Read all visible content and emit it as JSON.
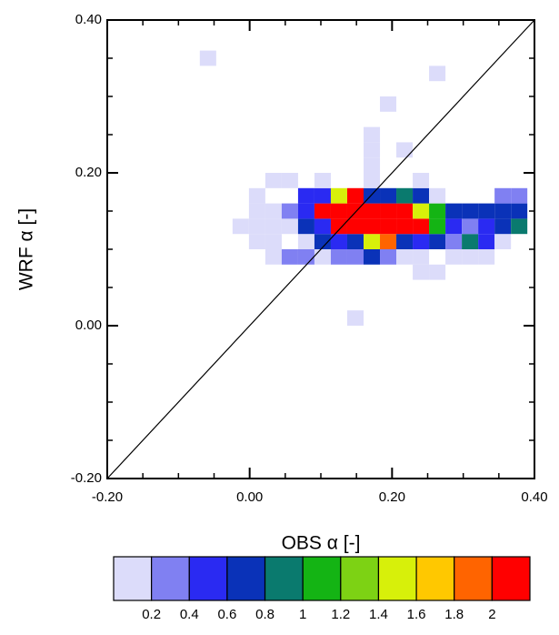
{
  "chart_data": {
    "type": "heatmap",
    "xlabel": "OBS α [-]",
    "ylabel": "WRF α [-]",
    "xlim": [
      -0.2,
      0.4
    ],
    "ylim": [
      -0.2,
      0.4
    ],
    "xticks": [
      {
        "value": -0.2,
        "label": "-0.20"
      },
      {
        "value": 0,
        "label": "0.00"
      },
      {
        "value": 0.2,
        "label": "0.20"
      },
      {
        "value": 0.4,
        "label": "0.40"
      }
    ],
    "yticks": [
      {
        "value": -0.2,
        "label": "-0.20"
      },
      {
        "value": 0,
        "label": "0.00"
      },
      {
        "value": 0.2,
        "label": "0.20"
      },
      {
        "value": 0.4,
        "label": "0.40"
      }
    ],
    "xminorticks": [
      -0.15,
      -0.1,
      -0.05,
      0.05,
      0.1,
      0.15,
      0.25,
      0.3,
      0.35
    ],
    "yminorticks": [
      -0.15,
      -0.1,
      -0.05,
      0.05,
      0.1,
      0.15,
      0.25,
      0.3,
      0.35
    ],
    "reference_line": [
      [
        -0.2,
        -0.2
      ],
      [
        0.4,
        0.4
      ]
    ],
    "x_bins": [
      -0.07,
      -0.047,
      -0.024,
      -0.001,
      0.022,
      0.045,
      0.068,
      0.091,
      0.114,
      0.137,
      0.16,
      0.183,
      0.206,
      0.229,
      0.252,
      0.275,
      0.298,
      0.321,
      0.344,
      0.367,
      0.39
    ],
    "y_bins": [
      0,
      0.02,
      0.04,
      0.06,
      0.08,
      0.1,
      0.12,
      0.14,
      0.16,
      0.18,
      0.2,
      0.22,
      0.24,
      0.26,
      0.28,
      0.3,
      0.32,
      0.34,
      0.36
    ],
    "values": [
      [
        null,
        null,
        null,
        null,
        null,
        null,
        null,
        null,
        null,
        0.1,
        null,
        null,
        null,
        null,
        null,
        null,
        null,
        null,
        null,
        null
      ],
      [
        null,
        null,
        null,
        null,
        null,
        null,
        null,
        null,
        null,
        null,
        null,
        null,
        null,
        null,
        null,
        null,
        null,
        null,
        null,
        null
      ],
      [
        null,
        null,
        null,
        null,
        null,
        null,
        null,
        null,
        null,
        null,
        null,
        null,
        null,
        null,
        null,
        null,
        null,
        null,
        null,
        null
      ],
      [
        null,
        null,
        null,
        null,
        null,
        null,
        null,
        null,
        null,
        null,
        null,
        null,
        null,
        0.1,
        0.1,
        null,
        null,
        null,
        null,
        null
      ],
      [
        null,
        null,
        null,
        null,
        0.1,
        0.3,
        0.3,
        0.1,
        0.3,
        0.3,
        0.7,
        0.3,
        0.1,
        0.1,
        null,
        0.1,
        0.1,
        0.1,
        null,
        null
      ],
      [
        null,
        null,
        null,
        0.1,
        0.1,
        null,
        0.1,
        0.7,
        0.5,
        0.7,
        1.5,
        1.9,
        0.7,
        0.5,
        0.7,
        0.3,
        0.9,
        0.5,
        0.1,
        null
      ],
      [
        null,
        null,
        0.1,
        0.1,
        0.1,
        0.1,
        0.7,
        0.5,
        2.5,
        2.5,
        2.5,
        2.5,
        2.5,
        2.5,
        1.1,
        0.5,
        0.3,
        0.5,
        0.7,
        0.9
      ],
      [
        null,
        null,
        null,
        0.1,
        0.1,
        0.3,
        0.5,
        2.5,
        2.5,
        2.5,
        2.5,
        2.5,
        2.5,
        1.5,
        1.1,
        0.7,
        0.7,
        0.7,
        0.7,
        0.7
      ],
      [
        null,
        null,
        null,
        0.1,
        null,
        null,
        0.5,
        0.5,
        1.5,
        2.5,
        0.7,
        0.7,
        0.9,
        0.7,
        0.1,
        null,
        null,
        null,
        0.3,
        0.3
      ],
      [
        null,
        null,
        null,
        null,
        0.1,
        0.1,
        null,
        0.1,
        null,
        null,
        0.1,
        null,
        null,
        0.1,
        null,
        null,
        null,
        null,
        null,
        null
      ],
      [
        null,
        null,
        null,
        null,
        null,
        null,
        null,
        null,
        null,
        null,
        0.1,
        null,
        null,
        null,
        null,
        null,
        null,
        null,
        null,
        null
      ],
      [
        null,
        null,
        null,
        null,
        null,
        null,
        null,
        null,
        null,
        null,
        0.1,
        null,
        0.1,
        null,
        null,
        null,
        null,
        null,
        null,
        null
      ],
      [
        null,
        null,
        null,
        null,
        null,
        null,
        null,
        null,
        null,
        null,
        0.1,
        null,
        null,
        null,
        null,
        null,
        null,
        null,
        null,
        null
      ],
      [
        null,
        null,
        null,
        null,
        null,
        null,
        null,
        null,
        null,
        null,
        null,
        null,
        null,
        null,
        null,
        null,
        null,
        null,
        null,
        null
      ],
      [
        null,
        null,
        null,
        null,
        null,
        null,
        null,
        null,
        null,
        null,
        null,
        0.1,
        null,
        null,
        null,
        null,
        null,
        null,
        null,
        null
      ],
      [
        null,
        null,
        null,
        null,
        null,
        null,
        null,
        null,
        null,
        null,
        null,
        null,
        null,
        null,
        null,
        null,
        null,
        null,
        null,
        null
      ],
      [
        null,
        null,
        null,
        null,
        null,
        null,
        null,
        null,
        null,
        null,
        null,
        null,
        null,
        null,
        0.1,
        null,
        null,
        null,
        null,
        null
      ],
      [
        0.1,
        null,
        null,
        null,
        null,
        null,
        null,
        null,
        null,
        null,
        null,
        null,
        null,
        null,
        null,
        null,
        null,
        null,
        null,
        null
      ]
    ],
    "colorbar": {
      "levels": [
        0.2,
        0.4,
        0.6,
        0.8,
        1,
        1.2,
        1.4,
        1.6,
        1.8,
        2
      ],
      "colors": [
        "#dcdcfa",
        "#8080f2",
        "#2a2af2",
        "#0a32b8",
        "#0a7a6e",
        "#14b414",
        "#7dd214",
        "#d7f00a",
        "#ffc800",
        "#ff6400",
        "#ff0000"
      ]
    }
  }
}
